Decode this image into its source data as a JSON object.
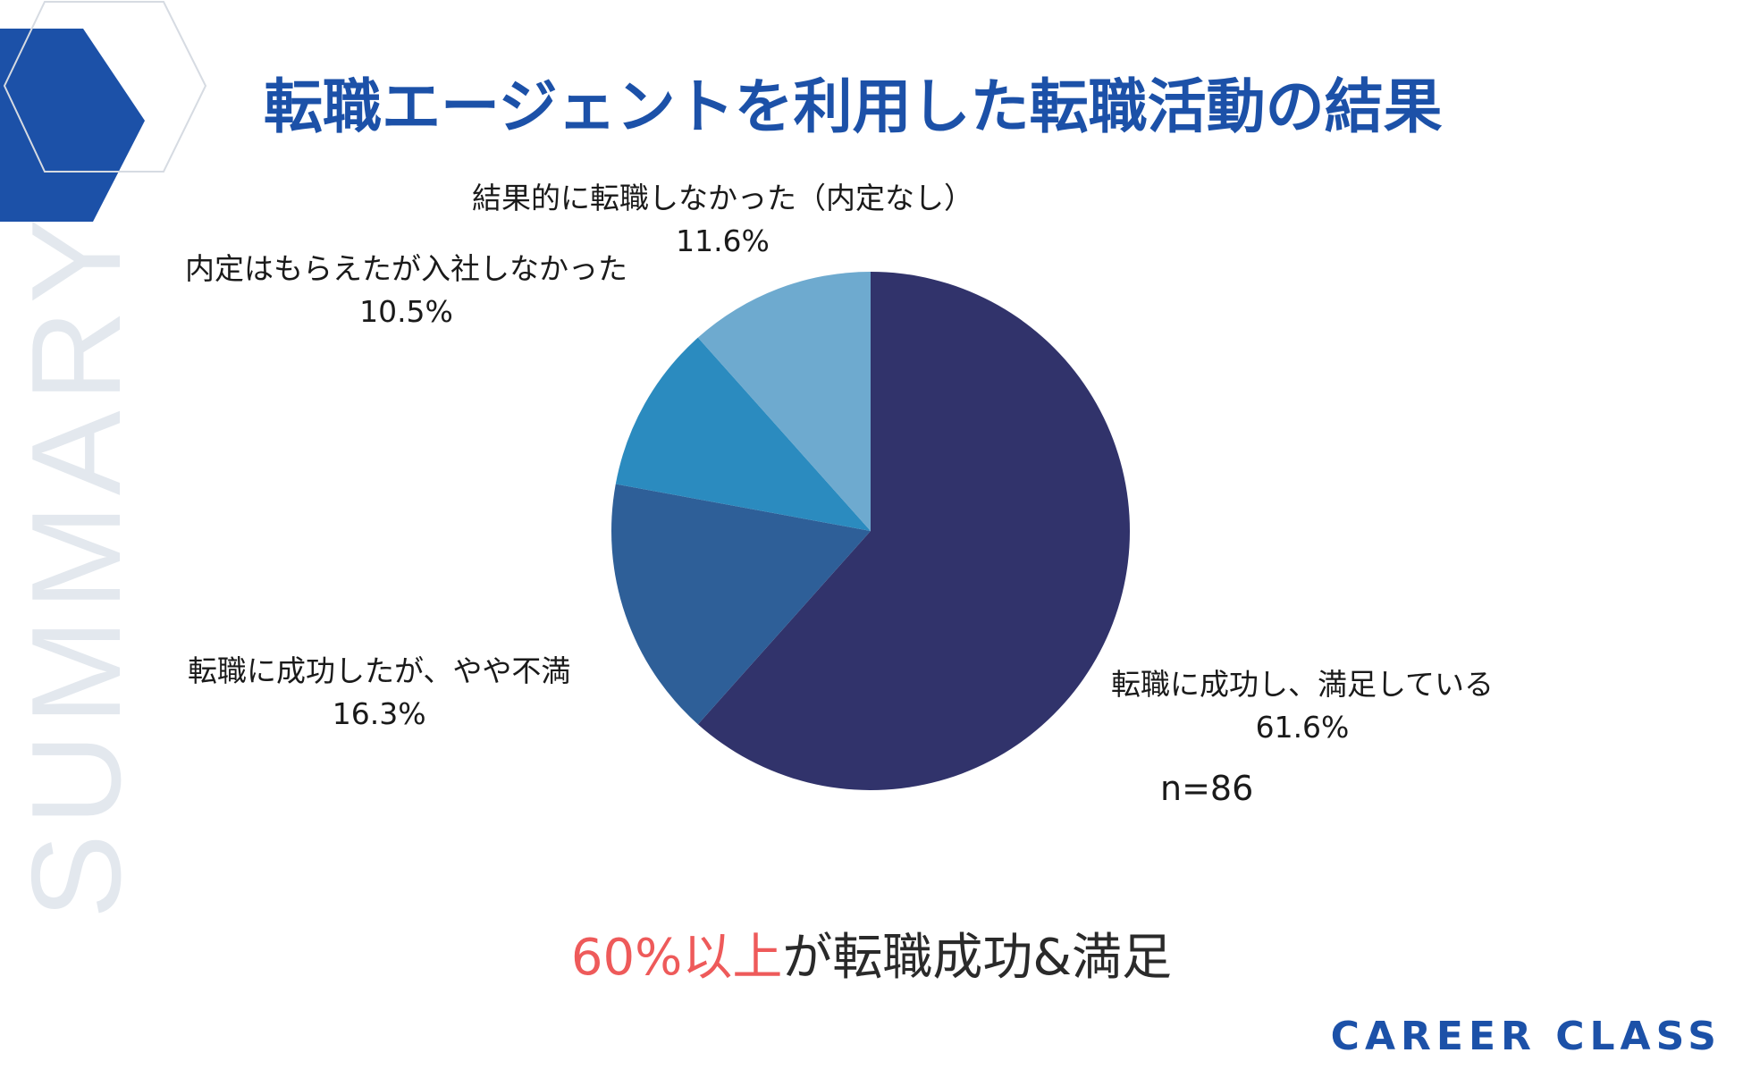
{
  "title": "転職エージェントを利用した転職活動の結果",
  "watermark": "SUMMARY",
  "sample_size": "n=86",
  "conclusion": {
    "highlight": "60%以上",
    "rest": "が転職成功&満足"
  },
  "brand": "CAREER CLASS",
  "colors": {
    "title": "#1c51a8",
    "hexagon": "#1c51a8",
    "watermark": "#e3e8ee",
    "highlight": "#ee5a5a",
    "brand": "#1c51a8"
  },
  "chart_data": {
    "type": "pie",
    "title": "",
    "slices": [
      {
        "label": "転職に成功し、満足している",
        "value": 61.6,
        "display": "61.6%",
        "color": "#31336b"
      },
      {
        "label": "転職に成功したが、やや不満",
        "value": 16.3,
        "display": "16.3%",
        "color": "#2e5f98"
      },
      {
        "label": "内定はもらえたが入社しなかった",
        "value": 10.5,
        "display": "10.5%",
        "color": "#2b8bbf"
      },
      {
        "label": "結果的に転職しなかった（内定なし）",
        "value": 11.6,
        "display": "11.6%",
        "color": "#6eaacf"
      }
    ],
    "start_angle": "12 o'clock",
    "direction": "clockwise",
    "legend": "none (labels beside slices)"
  }
}
